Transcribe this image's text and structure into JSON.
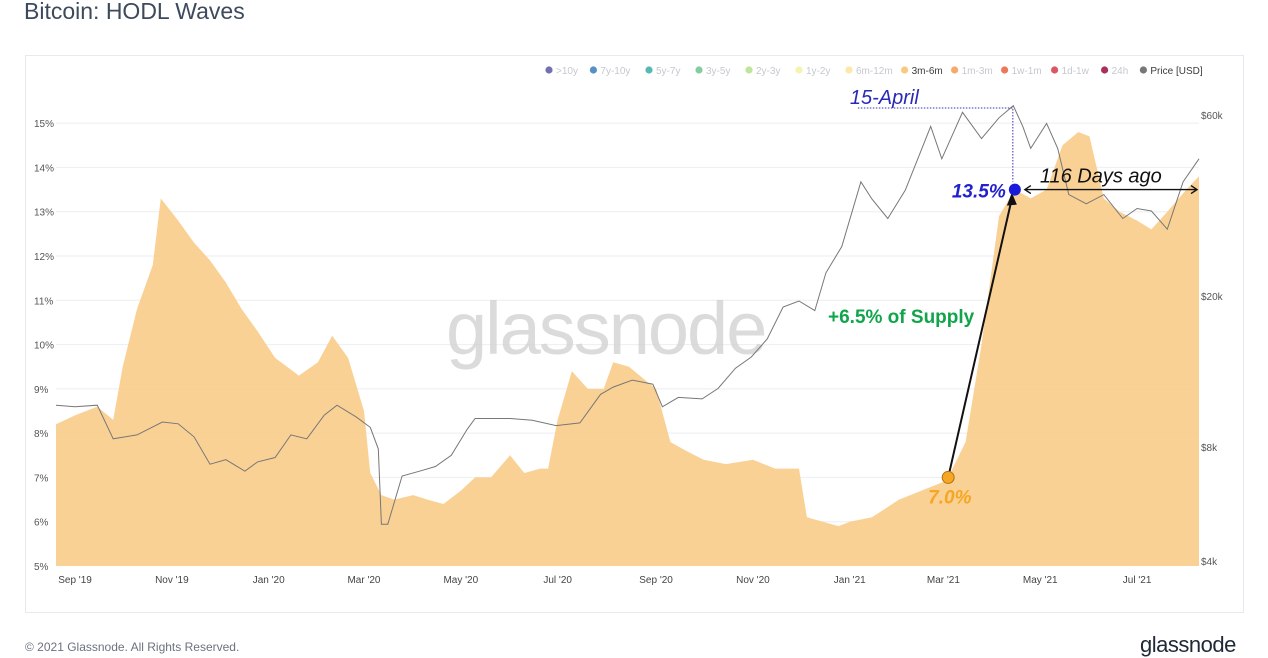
{
  "header": {
    "title": "Bitcoin: HODL Waves"
  },
  "footer": {
    "copyright": "© 2021 Glassnode. All Rights Reserved.",
    "brand": "glassnode"
  },
  "watermark": "glassnode",
  "chart_data": {
    "type": "area",
    "title": "Bitcoin: HODL Waves",
    "legend_position": "top-right",
    "grid": true,
    "legend": [
      {
        "label": ">10y",
        "color": "#5b57a2",
        "active": false
      },
      {
        "label": "7y-10y",
        "color": "#3a7bbf",
        "active": false
      },
      {
        "label": "5y-7y",
        "color": "#3aaea5",
        "active": false
      },
      {
        "label": "3y-5y",
        "color": "#6dc58f",
        "active": false
      },
      {
        "label": "2y-3y",
        "color": "#b5df8a",
        "active": false
      },
      {
        "label": "1y-2y",
        "color": "#f3f2a0",
        "active": false
      },
      {
        "label": "6m-12m",
        "color": "#fbe49a",
        "active": false
      },
      {
        "label": "3m-6m",
        "color": "#f9c982",
        "active": true
      },
      {
        "label": "1m-3m",
        "color": "#f59a4f",
        "active": false
      },
      {
        "label": "1w-1m",
        "color": "#e9603c",
        "active": false
      },
      {
        "label": "1d-1w",
        "color": "#d33b4a",
        "active": false
      },
      {
        "label": "24h",
        "color": "#9b0c3f",
        "active": false
      },
      {
        "label": "Price [USD]",
        "color": "#777777",
        "active": true
      }
    ],
    "y_left": {
      "ticks": [
        "15%",
        "14%",
        "13%",
        "12%",
        "11%",
        "10%",
        "9%",
        "8%",
        "7%",
        "6%",
        "5%"
      ],
      "ylim": [
        5,
        15.5
      ]
    },
    "y_right": {
      "scale": "log",
      "ticks": [
        "$60k",
        "$20k",
        "$8k",
        "$4k"
      ],
      "tick_values": [
        60000,
        20000,
        8000,
        4000
      ]
    },
    "x_ticks": [
      "Sep '19",
      "Nov '19",
      "Jan '20",
      "Mar '20",
      "May '20",
      "Jul '20",
      "Sep '20",
      "Nov '20",
      "Jan '21",
      "Mar '21",
      "May '21",
      "Jul '21"
    ],
    "series": [
      {
        "name": "3m-6m",
        "color": "#f9c982",
        "x": [
          "2019-08-20",
          "2019-09-01",
          "2019-09-15",
          "2019-09-25",
          "2019-10-01",
          "2019-10-10",
          "2019-10-20",
          "2019-10-25",
          "2019-11-05",
          "2019-11-15",
          "2019-11-25",
          "2019-12-05",
          "2019-12-15",
          "2019-12-25",
          "2020-01-05",
          "2020-01-20",
          "2020-02-01",
          "2020-02-10",
          "2020-02-20",
          "2020-03-01",
          "2020-03-05",
          "2020-03-12",
          "2020-03-20",
          "2020-04-01",
          "2020-04-10",
          "2020-04-20",
          "2020-05-01",
          "2020-05-10",
          "2020-05-20",
          "2020-06-01",
          "2020-06-10",
          "2020-06-20",
          "2020-06-25",
          "2020-07-01",
          "2020-07-10",
          "2020-07-20",
          "2020-07-30",
          "2020-08-05",
          "2020-08-15",
          "2020-08-25",
          "2020-09-01",
          "2020-09-10",
          "2020-09-20",
          "2020-10-01",
          "2020-10-15",
          "2020-11-01",
          "2020-11-15",
          "2020-11-30",
          "2020-12-05",
          "2020-12-15",
          "2020-12-25",
          "2021-01-01",
          "2021-01-15",
          "2021-02-01",
          "2021-02-15",
          "2021-03-01",
          "2021-03-04",
          "2021-03-15",
          "2021-03-25",
          "2021-04-05",
          "2021-04-15",
          "2021-04-25",
          "2021-05-05",
          "2021-05-15",
          "2021-05-25",
          "2021-06-01",
          "2021-06-10",
          "2021-06-20",
          "2021-07-01",
          "2021-07-10",
          "2021-07-20",
          "2021-08-01",
          "2021-08-09"
        ],
        "values": [
          8.2,
          8.4,
          8.6,
          8.3,
          9.5,
          10.8,
          11.8,
          13.3,
          12.8,
          12.3,
          11.9,
          11.4,
          10.8,
          10.3,
          9.7,
          9.3,
          9.6,
          10.2,
          9.7,
          8.5,
          7.1,
          6.6,
          6.5,
          6.6,
          6.5,
          6.4,
          6.7,
          7.0,
          7.0,
          7.5,
          7.1,
          7.2,
          7.2,
          8.3,
          9.4,
          9.0,
          9.0,
          9.6,
          9.5,
          9.2,
          9.0,
          7.8,
          7.6,
          7.4,
          7.3,
          7.4,
          7.2,
          7.2,
          6.1,
          6.0,
          5.9,
          6.0,
          6.1,
          6.5,
          6.7,
          6.9,
          7.0,
          7.8,
          10.0,
          12.9,
          13.5,
          13.3,
          13.5,
          14.5,
          14.8,
          14.7,
          13.3,
          13.0,
          12.8,
          12.6,
          13.0,
          13.5,
          13.8
        ]
      },
      {
        "name": "Price [USD]",
        "color": "#777777",
        "x": [
          "2019-08-20",
          "2019-09-01",
          "2019-09-15",
          "2019-09-25",
          "2019-10-10",
          "2019-10-26",
          "2019-11-05",
          "2019-11-15",
          "2019-11-25",
          "2019-12-05",
          "2019-12-17",
          "2019-12-25",
          "2020-01-05",
          "2020-01-15",
          "2020-01-25",
          "2020-02-05",
          "2020-02-13",
          "2020-02-25",
          "2020-03-05",
          "2020-03-10",
          "2020-03-12",
          "2020-03-16",
          "2020-03-25",
          "2020-04-05",
          "2020-04-15",
          "2020-04-25",
          "2020-05-05",
          "2020-05-10",
          "2020-05-20",
          "2020-06-01",
          "2020-06-15",
          "2020-06-30",
          "2020-07-15",
          "2020-07-28",
          "2020-08-05",
          "2020-08-17",
          "2020-08-30",
          "2020-09-05",
          "2020-09-15",
          "2020-09-30",
          "2020-10-10",
          "2020-10-21",
          "2020-10-31",
          "2020-11-10",
          "2020-11-20",
          "2020-11-30",
          "2020-12-10",
          "2020-12-17",
          "2020-12-27",
          "2021-01-08",
          "2021-01-15",
          "2021-01-25",
          "2021-02-05",
          "2021-02-21",
          "2021-02-28",
          "2021-03-13",
          "2021-03-25",
          "2021-04-05",
          "2021-04-14",
          "2021-04-20",
          "2021-04-25",
          "2021-05-05",
          "2021-05-12",
          "2021-05-19",
          "2021-05-30",
          "2021-06-10",
          "2021-06-22",
          "2021-07-01",
          "2021-07-10",
          "2021-07-20",
          "2021-07-30",
          "2021-08-09"
        ],
        "values": [
          10300,
          10200,
          10300,
          8400,
          8600,
          9300,
          9200,
          8500,
          7200,
          7400,
          6900,
          7300,
          7500,
          8600,
          8400,
          9700,
          10300,
          9600,
          9000,
          7900,
          5000,
          5000,
          6700,
          6900,
          7100,
          7600,
          8900,
          9500,
          9500,
          9500,
          9400,
          9100,
          9250,
          11000,
          11500,
          12000,
          11700,
          10200,
          10800,
          10700,
          11400,
          12900,
          13800,
          15400,
          18700,
          19400,
          18300,
          23000,
          27000,
          40000,
          36000,
          32000,
          38000,
          56000,
          46000,
          61000,
          52000,
          59000,
          63500,
          56000,
          49000,
          57000,
          49000,
          37000,
          35000,
          37000,
          32000,
          34000,
          33500,
          30000,
          40000,
          46000
        ]
      }
    ],
    "annotations": [
      {
        "label": "15-April",
        "color": "#2a2ab8"
      },
      {
        "label": "13.5%",
        "value": 13.5,
        "date": "2021-04-15",
        "color": "#2222cc"
      },
      {
        "label": "7.0%",
        "value": 7.0,
        "date": "2021-03-04",
        "color": "#f5a623"
      },
      {
        "label": "+6.5% of Supply",
        "color": "#10a54a"
      },
      {
        "label": "116 Days ago",
        "color": "#111111"
      }
    ]
  }
}
